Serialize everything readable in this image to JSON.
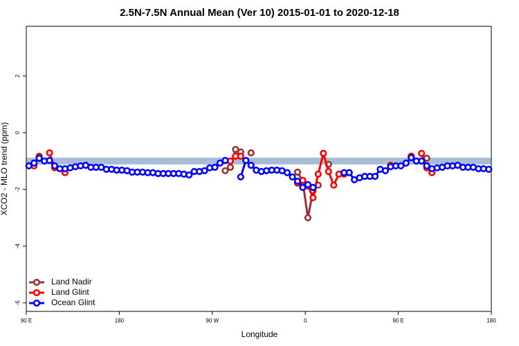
{
  "chart_data": {
    "type": "line",
    "title": "2.5N-7.5N Annual Mean (Ver 10)   2015-01-01 to 2020-12-18",
    "x_label": "Longitude",
    "y_label": "XCO2 - MLO trend (ppm)",
    "xlim": [
      90,
      540
    ],
    "ylim": [
      -6.3,
      3.75
    ],
    "xticks": [
      {
        "value": 90,
        "label": "90 E"
      },
      180,
      {
        "value": 270,
        "label": "90 W"
      },
      {
        "value": 360,
        "label": "0"
      },
      {
        "value": 450,
        "label": "90 E"
      },
      {
        "value": 540,
        "label": "180"
      }
    ],
    "yticks": [
      -6,
      -4,
      -2,
      0,
      2
    ],
    "reference_band": [
      -1.12,
      -0.88
    ],
    "band_color": "#a7bcd9",
    "legend": "bottom-left",
    "x": [
      92.5,
      97.5,
      102.5,
      107.5,
      112.5,
      117.5,
      122.5,
      127.5,
      132.5,
      137.5,
      142.5,
      147.5,
      152.5,
      157.5,
      162.5,
      167.5,
      172.5,
      177.5,
      182.5,
      187.5,
      192.5,
      197.5,
      202.5,
      207.5,
      212.5,
      217.5,
      222.5,
      227.5,
      232.5,
      237.5,
      242.5,
      247.5,
      252.5,
      257.5,
      262.5,
      267.5,
      272.5,
      277.5,
      282.5,
      287.5,
      292.5,
      297.5,
      302.5,
      307.5,
      312.5,
      317.5,
      322.5,
      327.5,
      332.5,
      337.5,
      342.5,
      347.5,
      352.5,
      357.5,
      362.5,
      367.5,
      372.5,
      377.5,
      382.5,
      387.5,
      392.5,
      397.5,
      402.5,
      407.5,
      412.5,
      417.5,
      422.5,
      427.5,
      432.5,
      437.5,
      442.5,
      447.5,
      452.5,
      457.5,
      462.5,
      467.5,
      472.5,
      477.5,
      482.5,
      487.5,
      492.5,
      497.5,
      502.5,
      507.5,
      512.5,
      517.5,
      522.5,
      527.5,
      532.5,
      537.5
    ],
    "series": [
      {
        "name": "Land Nadir",
        "color": "#993333",
        "values": [
          null,
          -1.12,
          -0.83,
          null,
          null,
          null,
          null,
          null,
          null,
          null,
          null,
          null,
          null,
          null,
          null,
          null,
          null,
          null,
          null,
          null,
          null,
          null,
          null,
          null,
          null,
          null,
          null,
          null,
          null,
          null,
          null,
          null,
          null,
          null,
          null,
          null,
          null,
          null,
          -1.34,
          -1.22,
          -0.59,
          -0.68,
          null,
          -0.71,
          null,
          null,
          null,
          null,
          null,
          null,
          null,
          null,
          -1.39,
          -1.71,
          -3.0,
          -2.05,
          -1.85,
          null,
          -1.12,
          null,
          null,
          null,
          null,
          null,
          null,
          null,
          null,
          null,
          null,
          null,
          null,
          null,
          null,
          null,
          -0.83,
          null,
          null,
          -0.9,
          null,
          null,
          null,
          null,
          null,
          null,
          null,
          null,
          null,
          null,
          null,
          null
        ]
      },
      {
        "name": "Land Glint",
        "color": "#ff0000",
        "values": [
          null,
          -1.17,
          -0.85,
          null,
          -0.71,
          -1.24,
          null,
          -1.41,
          null,
          null,
          null,
          null,
          null,
          null,
          null,
          null,
          null,
          null,
          null,
          null,
          null,
          null,
          null,
          null,
          null,
          null,
          null,
          null,
          null,
          null,
          null,
          null,
          null,
          null,
          null,
          null,
          null,
          null,
          null,
          -1.0,
          -0.83,
          -0.83,
          null,
          null,
          null,
          null,
          null,
          null,
          null,
          null,
          null,
          null,
          -1.78,
          -1.68,
          -1.88,
          -2.29,
          -1.46,
          -0.73,
          -1.37,
          -1.85,
          -1.46,
          -1.46,
          -1.41,
          null,
          null,
          null,
          null,
          null,
          null,
          null,
          -1.15,
          null,
          null,
          null,
          -0.83,
          null,
          -0.73,
          -1.24,
          -1.41,
          null,
          null,
          null,
          null,
          null,
          null,
          null,
          null,
          null,
          null,
          null
        ]
      },
      {
        "name": "Ocean Glint",
        "color": "#0000ff",
        "values": [
          -1.17,
          -1.07,
          -0.9,
          -1.0,
          -0.98,
          -1.17,
          -1.27,
          -1.27,
          -1.24,
          -1.2,
          -1.17,
          -1.15,
          -1.22,
          -1.22,
          -1.22,
          -1.29,
          -1.29,
          -1.32,
          -1.32,
          -1.34,
          -1.39,
          -1.39,
          -1.39,
          -1.41,
          -1.41,
          -1.44,
          -1.44,
          -1.44,
          -1.44,
          -1.44,
          -1.46,
          -1.49,
          -1.37,
          -1.37,
          -1.34,
          -1.24,
          -1.22,
          -1.07,
          -0.98,
          null,
          null,
          -1.56,
          -0.98,
          -1.15,
          -1.32,
          -1.37,
          -1.34,
          -1.32,
          -1.32,
          -1.34,
          -1.41,
          -1.56,
          -1.71,
          -1.93,
          -1.83,
          -1.93,
          null,
          null,
          null,
          null,
          null,
          -1.41,
          -1.41,
          -1.66,
          -1.59,
          -1.54,
          -1.54,
          -1.54,
          -1.29,
          -1.34,
          -1.2,
          -1.17,
          -1.17,
          -1.07,
          -0.88,
          -1.0,
          -1.0,
          -1.17,
          -1.27,
          -1.24,
          -1.22,
          -1.17,
          -1.17,
          -1.15,
          -1.22,
          -1.22,
          -1.22,
          -1.27,
          -1.27,
          -1.29
        ]
      }
    ]
  }
}
